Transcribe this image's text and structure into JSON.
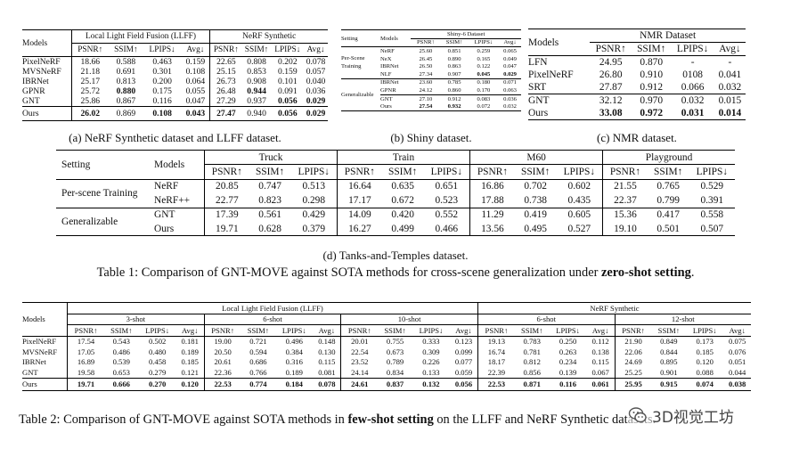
{
  "nerf_llff": {
    "caption": "(a) NeRF Synthetic dataset and LLFF dataset.",
    "models_header": "Models",
    "group_llff": "Local Light Field Fusion (LLFF)",
    "group_nerf": "NeRF Synthetic",
    "metrics": [
      "PSNR↑",
      "SSIM↑",
      "LPIPS↓",
      "Avg↓",
      "PSNR↑",
      "SSIM↑",
      "LPIPS↓",
      "Avg↓"
    ],
    "rows": [
      {
        "model": "PixelNeRF",
        "values": [
          "18.66",
          "0.588",
          "0.463",
          "0.159",
          "22.65",
          "0.808",
          "0.202",
          "0.078"
        ]
      },
      {
        "model": "MVSNeRF",
        "values": [
          "21.18",
          "0.691",
          "0.301",
          "0.108",
          "25.15",
          "0.853",
          "0.159",
          "0.057"
        ]
      },
      {
        "model": "IBRNet",
        "values": [
          "25.17",
          "0.813",
          "0.200",
          "0.064",
          "26.73",
          "0.908",
          "0.101",
          "0.040"
        ]
      },
      {
        "model": "GPNR",
        "values": [
          "25.72",
          "0.880",
          "0.175",
          "0.055",
          "26.48",
          "0.944",
          "0.091",
          "0.036"
        ]
      },
      {
        "model": "GNT",
        "values": [
          "25.86",
          "0.867",
          "0.116",
          "0.047",
          "27.29",
          "0.937",
          "0.056",
          "0.029"
        ]
      },
      {
        "model": "Ours",
        "values": [
          "26.02",
          "0.869",
          "0.108",
          "0.043",
          "27.47",
          "0.940",
          "0.056",
          "0.029"
        ]
      }
    ]
  },
  "shiny": {
    "caption": "(b) Shiny dataset.",
    "setting_header": "Setting",
    "models_header": "Models",
    "group": "Shiny-6 Dataset",
    "metrics": [
      "PSNR↑",
      "SSIM↑",
      "LPIPS↓",
      "Avg↓"
    ],
    "settings": [
      "Per-Scene Training",
      "Generalizable"
    ],
    "rows": [
      {
        "model": "NeRF",
        "values": [
          "25.60",
          "0.851",
          "0.259",
          "0.065"
        ]
      },
      {
        "model": "NeX",
        "values": [
          "26.45",
          "0.890",
          "0.165",
          "0.049"
        ]
      },
      {
        "model": "IBRNet",
        "values": [
          "26.50",
          "0.863",
          "0.122",
          "0.047"
        ]
      },
      {
        "model": "NLF",
        "values": [
          "27.34",
          "0.907",
          "0.045",
          "0.029"
        ]
      },
      {
        "model": "IBRNet",
        "values": [
          "23.60",
          "0.785",
          "0.180",
          "0.071"
        ]
      },
      {
        "model": "GPNR",
        "values": [
          "24.12",
          "0.860",
          "0.170",
          "0.063"
        ]
      },
      {
        "model": "GNT",
        "values": [
          "27.10",
          "0.912",
          "0.083",
          "0.036"
        ]
      },
      {
        "model": "Ours",
        "values": [
          "27.54",
          "0.932",
          "0.072",
          "0.032"
        ]
      }
    ]
  },
  "nmr": {
    "caption": "(c) NMR dataset.",
    "models_header": "Models",
    "group": "NMR Dataset",
    "metrics": [
      "PSNR↑",
      "SSIM↑",
      "LPIPS↓",
      "Avg↓"
    ],
    "rows": [
      {
        "model": "LFN",
        "values": [
          "24.95",
          "0.870",
          "-",
          "-"
        ]
      },
      {
        "model": "PixelNeRF",
        "values": [
          "26.80",
          "0.910",
          "0108",
          "0.041"
        ]
      },
      {
        "model": "SRT",
        "values": [
          "27.87",
          "0.912",
          "0.066",
          "0.032"
        ]
      },
      {
        "model": "GNT",
        "values": [
          "32.12",
          "0.970",
          "0.032",
          "0.015"
        ]
      },
      {
        "model": "Ours",
        "values": [
          "33.08",
          "0.972",
          "0.031",
          "0.014"
        ]
      }
    ]
  },
  "tanks": {
    "caption": "(d) Tanks-and-Temples dataset.",
    "setting_header": "Setting",
    "models_header": "Models",
    "scenes": [
      "Truck",
      "Train",
      "M60",
      "Playground"
    ],
    "metrics": [
      "PSNR↑",
      "SSIM↑",
      "LPIPS↓"
    ],
    "settings": [
      "Per-scene Training",
      "Generalizable"
    ],
    "rows": [
      {
        "model": "NeRF",
        "values": [
          "20.85",
          "0.747",
          "0.513",
          "16.64",
          "0.635",
          "0.651",
          "16.86",
          "0.702",
          "0.602",
          "21.55",
          "0.765",
          "0.529"
        ]
      },
      {
        "model": "NeRF++",
        "values": [
          "22.77",
          "0.823",
          "0.298",
          "17.17",
          "0.672",
          "0.523",
          "17.88",
          "0.738",
          "0.435",
          "22.37",
          "0.799",
          "0.391"
        ]
      },
      {
        "model": "GNT",
        "values": [
          "17.39",
          "0.561",
          "0.429",
          "14.09",
          "0.420",
          "0.552",
          "11.29",
          "0.419",
          "0.605",
          "15.36",
          "0.417",
          "0.558"
        ]
      },
      {
        "model": "Ours",
        "values": [
          "19.71",
          "0.628",
          "0.379",
          "16.27",
          "0.499",
          "0.466",
          "13.56",
          "0.495",
          "0.527",
          "19.10",
          "0.501",
          "0.507"
        ]
      }
    ]
  },
  "table1_caption": {
    "prefix": "Table 1: Comparison of GNT-MOVE against SOTA methods for cross-scene generalization under ",
    "bold": "zero-shot setting",
    "suffix": "."
  },
  "fewshot": {
    "models_header": "Models",
    "group_llff": "Local Light Field Fusion (LLFF)",
    "group_nerf": "NeRF Synthetic",
    "shots": [
      "3-shot",
      "6-shot",
      "10-shot",
      "6-shot",
      "12-shot"
    ],
    "metrics": [
      "PSNR↑",
      "SSIM↑",
      "LPIPS↓",
      "Avg↓"
    ],
    "rows": [
      {
        "model": "PixelNeRF",
        "values": [
          "17.54",
          "0.543",
          "0.502",
          "0.181",
          "19.00",
          "0.721",
          "0.496",
          "0.148",
          "20.01",
          "0.755",
          "0.333",
          "0.123",
          "19.13",
          "0.783",
          "0.250",
          "0.112",
          "21.90",
          "0.849",
          "0.173",
          "0.075"
        ]
      },
      {
        "model": "MVSNeRF",
        "values": [
          "17.05",
          "0.486",
          "0.480",
          "0.189",
          "20.50",
          "0.594",
          "0.384",
          "0.130",
          "22.54",
          "0.673",
          "0.309",
          "0.099",
          "16.74",
          "0.781",
          "0.263",
          "0.138",
          "22.06",
          "0.844",
          "0.185",
          "0.076"
        ]
      },
      {
        "model": "IBRNet",
        "values": [
          "16.89",
          "0.539",
          "0.458",
          "0.185",
          "20.61",
          "0.686",
          "0.316",
          "0.115",
          "23.52",
          "0.789",
          "0.226",
          "0.077",
          "18.17",
          "0.812",
          "0.234",
          "0.115",
          "24.69",
          "0.895",
          "0.120",
          "0.051"
        ]
      },
      {
        "model": "GNT",
        "values": [
          "19.58",
          "0.653",
          "0.279",
          "0.121",
          "22.36",
          "0.766",
          "0.189",
          "0.081",
          "24.14",
          "0.834",
          "0.133",
          "0.059",
          "22.39",
          "0.856",
          "0.139",
          "0.067",
          "25.25",
          "0.901",
          "0.088",
          "0.044"
        ]
      },
      {
        "model": "Ours",
        "values": [
          "19.71",
          "0.666",
          "0.270",
          "0.120",
          "22.53",
          "0.774",
          "0.184",
          "0.078",
          "24.61",
          "0.837",
          "0.132",
          "0.056",
          "22.53",
          "0.871",
          "0.116",
          "0.061",
          "25.95",
          "0.915",
          "0.074",
          "0.038"
        ]
      }
    ]
  },
  "table2_caption": {
    "prefix": "Table 2: Comparison of GNT-MOVE against SOTA methods in ",
    "bold": "few-shot setting",
    "suffix": " on the LLFF and NeRF Synthetic datasets."
  },
  "watermark": "3D视觉工坊",
  "colors": {
    "text": "#111111",
    "watermark": "#444444",
    "background": "#ffffff"
  }
}
